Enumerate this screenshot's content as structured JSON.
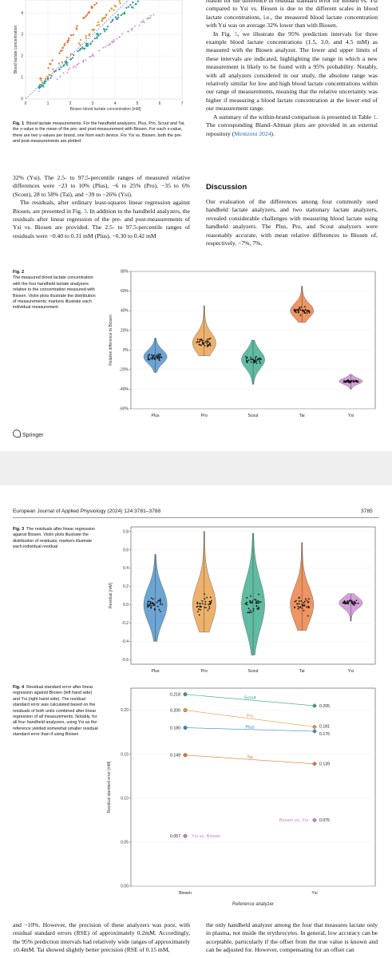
{
  "page1": {
    "fig1": {
      "ylabel": "Blood lactate concentration",
      "xlabel": "Biosen blood lactate concentration [mM]",
      "y_ticks": [
        "0",
        "1",
        "2",
        "3",
        "4"
      ],
      "x_ticks": [
        "0",
        "1",
        "2",
        "3",
        "4",
        "5",
        "6",
        "7"
      ],
      "caption_label": "Fig. 1",
      "caption_text": "Blood lactate measurements. For the handheld analyzers, Plus, Pro, Scout and Tai, the x-value is the mean of the pre- and post-measurement with Biosen. For each x-value, there are two y-values per brand, one from each device. For Ysi vs. Biosen, both the pre- and post-measurements are plotted"
    },
    "right_top_text": "reason for the difference in residual standard error for Biosen vs. Ysi compared to Ysi vs. Biosen is due to the different scales in blood lactate concentrations, i.e., the measured blood lactate concentration with Ysi was on average 32% lower than with Biosen.",
    "right_para2_a": "In Fig. ",
    "right_para2_link": "5",
    "right_para2_b": ", we illustrate the 95% prediction intervals for three example blood lactate concentrations (1.5, 3.0, and 4.5 mM) as measured with the Biosen analyzer. The lower and upper limits of these intervals are indicated, highlighting the range in which a new measurement is likely to be found with a 95% probability. Notably, with all analyzers considered in our study, the absolute range was relatively similar for low and high blood lactate concentrations within our range of measurements, meaning that the relative uncertainty was higher if measuring a blood lactate concentration at the lower end of our measurement range.",
    "right_para3_a": "A summary of the within-brand comparison is presented in Table ",
    "right_para3_link1": "1",
    "right_para3_b": ". The corresponding Bland–Altman plots are provided in an external repository (",
    "right_para3_link2": "Mentzoni 2024",
    "right_para3_c": ").",
    "left_para1": "32% (Ysi). The 2.5- to 97.5-percentile ranges of measured relative differences were −23 to 10% (Plus), −6 to 25% (Pro), −35 to 6% (Scout), 28 to 58% (Tai), and −39 to −26% (Ysi).",
    "left_para2_a": "The residuals, after ordinary least-squares linear regression against Biosen, are presented in Fig. ",
    "left_para2_link": "3",
    "left_para2_b": ". In addition to the handheld analyzers, the residuals after linear regression of the pre- and post-measurements of Ysi vs. Biosen are provided. The 2.5- to 97.5-percentile ranges of residuals were −0.40 to 0.31 mM (Plus), −0.30 to 0.42 mM",
    "discussion_heading": "Discussion",
    "discussion_text": "Our evaluation of the differences among four commonly used handheld lactate analyzers, and two stationary lactate analyzers, revealed considerable challenges with measuring blood lactate using handheld analyzers. The Plus, Pro, and Scout analyzers were reasonably accurate, with mean relative differences to Biosen of, respectively, −7%, 7%,",
    "fig2": {
      "caption_label": "Fig. 2",
      "caption_text": "The measured blood lactate concentration with the four handheld lactate analyzers relative to the concentration measured with Biosen. Violin plots illustrate the distribution of measurements; markers illustrate each individual measurement",
      "ylabel": "Relative difference to Biosen",
      "y_ticks": [
        "80%",
        "60%",
        "40%",
        "20%",
        "0%",
        "-20%",
        "-40%",
        "-60%"
      ],
      "x_labels": [
        "Plus",
        "Pro",
        "Scout",
        "Tai",
        "Ysi"
      ]
    },
    "springer": "Springer"
  },
  "page2": {
    "journal": "European Journal of Applied Physiology (2024) 124:3781–3788",
    "page_number": "3785",
    "fig3": {
      "caption_label": "Fig. 3",
      "caption_text": "The residuals after linear regression against Biosen. Violin plots illustrate the distribution of residuals; markers illustrate each individual residual",
      "ylabel": "Residual [mM]",
      "y_ticks": [
        "0.8",
        "0.6",
        "0.4",
        "0.2",
        "0.0",
        "-0.2",
        "-0.4",
        "-0.6"
      ],
      "x_labels": [
        "Plus",
        "Pro",
        "Scout",
        "Tai",
        "Ysi"
      ]
    },
    "fig4": {
      "caption_label": "Fig. 4",
      "caption_text": "Residual standard error after linear regression against Biosen (left hand side) and Ysi (right hand side). The residual standard error was calculated based on the residuals of both units combined after linear regression of all measurements. Notably, for all four handheld analyzers, using Ysi as the reference yielded somewhat smaller residual standard error than if using Biosen",
      "ylabel": "Residual standard error [mM]",
      "xlabel": "Reference analyzer",
      "y_ticks": [
        "0.20",
        "0.15",
        "0.10",
        "0.05",
        "0.00"
      ],
      "x_labels": [
        "Biosen",
        "Ysi"
      ]
    },
    "bottom_left": "and −10%. However, the precision of these analyzers was poor, with residual standard errors (RSE) of approximately 0.2mM. Accordingly, the 95% prediction intervals had relatively wide ranges of approximately ±0.4mM. Tai showed slightly better precision (RSE of 0.15 mM,",
    "bottom_right": "the only handheld analyzer among the four that measures lactate only in plasma, not inside the erythrocytes. In general, low accuracy can be acceptable, particularly if the offset from the true value is known and can be adjusted for. However, compensating for an offset can"
  },
  "colors": {
    "Plus": "#3b87c4",
    "Pro": "#e8973a",
    "Scout": "#2aa583",
    "Tai": "#e8722f",
    "Ysi": "#c77fcf",
    "link": "#1f6fb2"
  },
  "chart_data": [
    {
      "type": "scatter",
      "ylabel": "Blood lactate concentration",
      "xlabel": "Biosen blood lactate concentration [mM]",
      "xlim": [
        0,
        7
      ],
      "ylim": [
        0,
        4.6
      ],
      "series": [
        {
          "name": "Plus",
          "trend_slope": 0.93
        },
        {
          "name": "Pro",
          "trend_slope": 1.07
        },
        {
          "name": "Scout",
          "trend_slope": 0.9
        },
        {
          "name": "Tai",
          "trend_slope": 1.43
        },
        {
          "name": "Ysi",
          "trend_slope": 0.68
        }
      ]
    },
    {
      "type": "violin",
      "ylabel": "Relative difference to Biosen",
      "ylim": [
        -60,
        80
      ],
      "categories": [
        "Plus",
        "Pro",
        "Scout",
        "Tai",
        "Ysi"
      ],
      "medians": [
        -7,
        7,
        -10,
        40,
        -32
      ],
      "mins": [
        -23,
        -6,
        -35,
        28,
        -40
      ],
      "maxs": [
        12,
        45,
        10,
        65,
        -25
      ]
    },
    {
      "type": "violin",
      "ylabel": "Residual [mM]",
      "ylim": [
        -0.65,
        0.85
      ],
      "categories": [
        "Plus",
        "Pro",
        "Scout",
        "Tai",
        "Ysi"
      ],
      "medians": [
        0.0,
        0.0,
        0.0,
        0.0,
        0.02
      ],
      "mins": [
        -0.4,
        -0.3,
        -0.55,
        -0.28,
        -0.18
      ],
      "maxs": [
        0.55,
        0.8,
        0.78,
        0.68,
        0.12
      ]
    },
    {
      "type": "line",
      "ylabel": "Residual standard error [mM]",
      "xlabel": "Reference analyzer",
      "x": [
        "Biosen",
        "Ysi"
      ],
      "ylim": [
        0,
        0.225
      ],
      "series": [
        {
          "name": "Scout",
          "values": [
            0.218,
            0.205
          ],
          "labels": [
            "0.218",
            "0.205"
          ]
        },
        {
          "name": "Pro",
          "values": [
            0.2,
            0.181
          ],
          "labels": [
            "0.200",
            "0.181"
          ]
        },
        {
          "name": "Plus",
          "values": [
            0.18,
            0.176
          ],
          "labels": [
            "0.180",
            "0.176"
          ]
        },
        {
          "name": "Tai",
          "values": [
            0.149,
            0.139
          ],
          "labels": [
            "0.149",
            "0.139"
          ]
        },
        {
          "name": "Ysi vs. Biosen",
          "values": [
            0.057,
            null
          ],
          "labels": [
            "0.057",
            ""
          ]
        },
        {
          "name": "Biosen vs. Ysi",
          "values": [
            null,
            0.075
          ],
          "labels": [
            "",
            "0.075"
          ]
        }
      ]
    }
  ]
}
